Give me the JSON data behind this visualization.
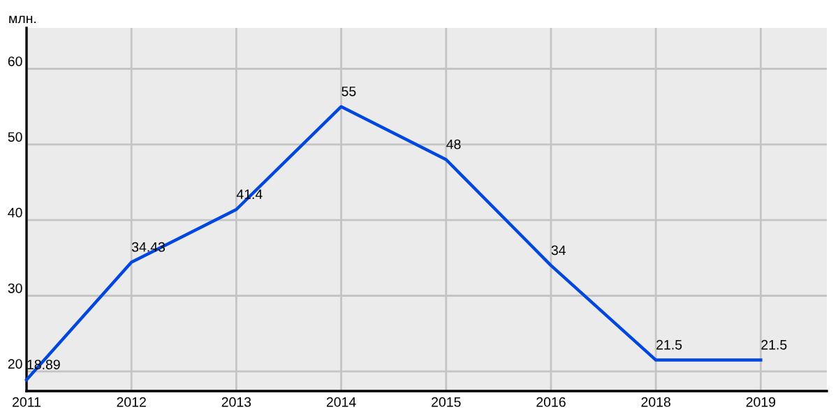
{
  "chart_data": {
    "type": "line",
    "ylabel": "млн.",
    "categories": [
      "2011",
      "2012",
      "2013",
      "2014",
      "2015",
      "2016",
      "2018",
      "2019"
    ],
    "series": [
      {
        "color": "#0047e0",
        "values": [
          18.89,
          34.43,
          41.4,
          55,
          48,
          34,
          21.5,
          21.5
        ]
      }
    ],
    "ylim": [
      17.4,
      65.4
    ],
    "yticks": [
      20,
      30,
      40,
      50,
      60
    ],
    "grid": true,
    "data_labels": true,
    "marker": "none",
    "line_style": "solid"
  }
}
